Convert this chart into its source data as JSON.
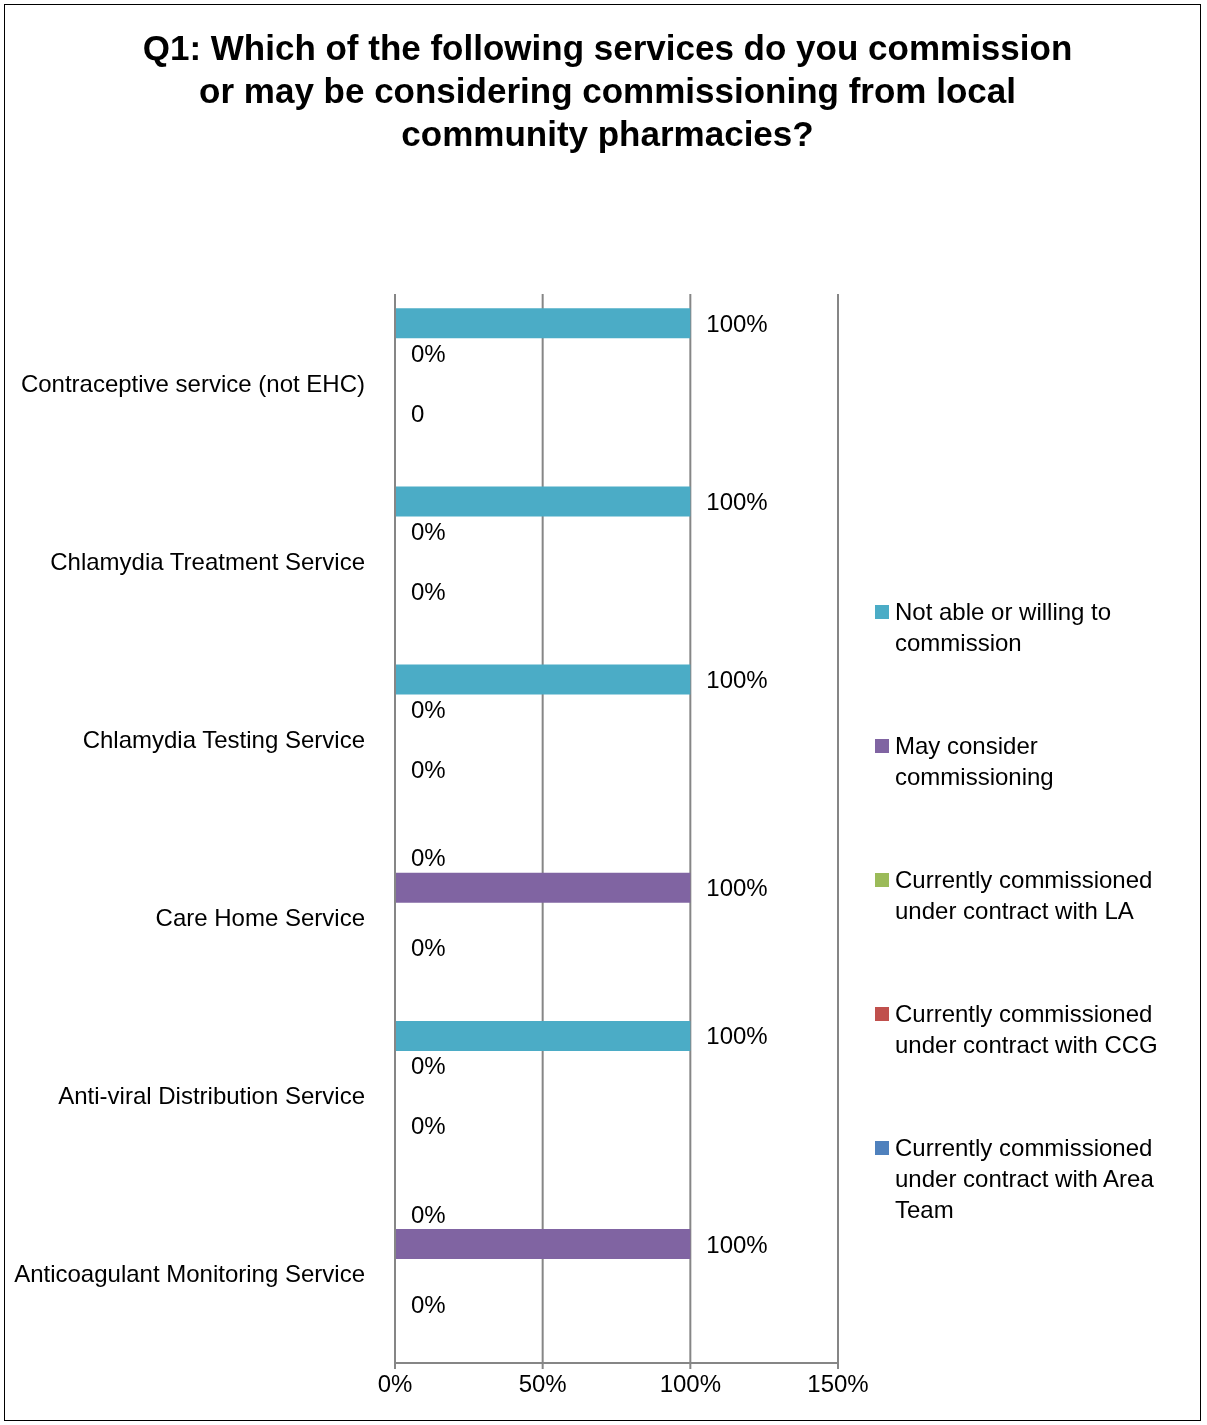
{
  "chart_data": {
    "type": "bar",
    "orientation": "horizontal",
    "title": "Q1: Which of the following services do you commission or may be considering commissioning from local community pharmacies?",
    "categories": [
      "Contraceptive service (not EHC)",
      "Chlamydia Treatment Service",
      "Chlamydia Testing Service",
      "Care Home Service",
      "Anti-viral Distribution Service",
      "Anticoagulant Monitoring Service"
    ],
    "series": [
      {
        "name": "Not able or willing to commission",
        "color": "#4bacc6",
        "values": [
          100,
          100,
          100,
          0,
          100,
          0
        ],
        "value_labels": [
          "100%",
          "100%",
          "100%",
          "0%",
          "100%",
          "0%"
        ]
      },
      {
        "name": "May consider commissioning",
        "color": "#8064a2",
        "values": [
          0,
          0,
          0,
          100,
          0,
          100
        ],
        "value_labels": [
          "0%",
          "0%",
          "0%",
          "100%",
          "0%",
          "100%"
        ]
      },
      {
        "name": "Currently commissioned under contract with LA",
        "color": "#9bbb59",
        "values": [
          null,
          null,
          null,
          null,
          null,
          null
        ]
      },
      {
        "name": "Currently commissioned under contract with CCG",
        "color": "#c0504d",
        "values": [
          0,
          0,
          0,
          0,
          0,
          0
        ],
        "value_labels": [
          "0",
          "0%",
          "0%",
          "0%",
          "0%",
          "0%"
        ]
      },
      {
        "name": "Currently commissioned under contract with Area Team",
        "color": "#4f81bd",
        "values": [
          null,
          null,
          null,
          null,
          null,
          null
        ]
      }
    ],
    "xlim": [
      0,
      150
    ],
    "xticks": [
      {
        "value": 0,
        "label": "0%"
      },
      {
        "value": 50,
        "label": "50%"
      },
      {
        "value": 100,
        "label": "100%"
      },
      {
        "value": 150,
        "label": "150%"
      }
    ],
    "grid": "x",
    "legend": "right"
  }
}
